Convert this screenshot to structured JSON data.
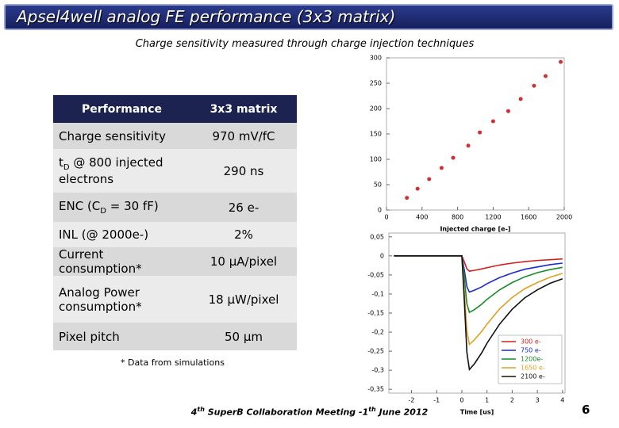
{
  "title": "Apsel4well analog FE performance (3x3 matrix)",
  "subtitle": "Charge sensitivity measured through charge injection techniques",
  "table": {
    "header": [
      "Performance",
      "3x3 matrix"
    ],
    "rows": [
      [
        "Charge sensitivity",
        "970 mV/fC"
      ],
      [
        {
          "text": "t",
          "sub": "D",
          "after": " @ 800 injected electrons"
        },
        "290 ns"
      ],
      [
        {
          "text": "ENC  (C",
          "sub": "D",
          "after": " = 30 fF)"
        },
        "26 e-"
      ],
      [
        "INL (@ 2000e-)",
        "2%"
      ],
      [
        "Current consumption*",
        "10 μA/pixel"
      ],
      [
        "Analog Power consumption*",
        "18 μW/pixel"
      ],
      [
        "Pixel pitch",
        "50 μm"
      ]
    ]
  },
  "footnote": "* Data from simulations",
  "footer": [
    "4",
    "th",
    " SuperB Collaboration Meeting -1",
    "th",
    " June 2012"
  ],
  "page_number": "6",
  "charts": [
    {
      "type": "scatter",
      "xlabel": "Injected charge [e-]",
      "color": "#d03030",
      "x": [
        230,
        350,
        480,
        620,
        750,
        920,
        1050,
        1200,
        1370,
        1510,
        1660,
        1790,
        1960
      ],
      "values": [
        24,
        42,
        61,
        83,
        103,
        127,
        153,
        175,
        195,
        219,
        245,
        264,
        292
      ],
      "xlim": [
        0,
        2000
      ],
      "xticks": [
        0,
        400,
        800,
        1200,
        1600,
        2000
      ],
      "ylim": [
        0,
        300
      ],
      "yticks": [
        0,
        50,
        100,
        150,
        200,
        250,
        300
      ]
    },
    {
      "type": "line",
      "xlabel": "Time [us]",
      "legend": "lower right",
      "x": [
        -2.7,
        -2,
        -1,
        0,
        0.1,
        0.2,
        0.3,
        0.5,
        0.8,
        1,
        1.5,
        2,
        2.5,
        3,
        3.5,
        4
      ],
      "series": [
        {
          "name": "300 e-",
          "color": "#d02020",
          "values": [
            0,
            0,
            0,
            0,
            -0.016,
            -0.034,
            -0.04,
            -0.038,
            -0.034,
            -0.031,
            -0.024,
            -0.019,
            -0.015,
            -0.012,
            -0.01,
            -0.008
          ]
        },
        {
          "name": "750 e-",
          "color": "#1a2ad0",
          "values": [
            0,
            0,
            0,
            0,
            -0.038,
            -0.081,
            -0.095,
            -0.09,
            -0.081,
            -0.073,
            -0.057,
            -0.045,
            -0.035,
            -0.029,
            -0.023,
            -0.019
          ]
        },
        {
          "name": "1200e-",
          "color": "#1a8a2a",
          "values": [
            0,
            0,
            0,
            0,
            -0.059,
            -0.126,
            -0.148,
            -0.141,
            -0.126,
            -0.114,
            -0.089,
            -0.07,
            -0.055,
            -0.044,
            -0.036,
            -0.03
          ]
        },
        {
          "name": "1650 e-",
          "color": "#e0a020",
          "values": [
            0,
            0,
            0,
            0,
            -0.093,
            -0.197,
            -0.232,
            -0.22,
            -0.197,
            -0.179,
            -0.139,
            -0.109,
            -0.086,
            -0.07,
            -0.056,
            -0.046
          ]
        },
        {
          "name": "2100 e-",
          "color": "#111111",
          "values": [
            0,
            0,
            0,
            0,
            -0.119,
            -0.253,
            -0.298,
            -0.283,
            -0.253,
            -0.229,
            -0.179,
            -0.14,
            -0.11,
            -0.089,
            -0.072,
            -0.06
          ]
        }
      ],
      "xlim": [
        -2.9,
        4.1
      ],
      "xticks": [
        -2,
        -1,
        0,
        1,
        2,
        3,
        4
      ],
      "ylim": [
        -0.36,
        0.06
      ],
      "yticks": [
        {
          "value": 0.05,
          "label": "0,05"
        },
        0,
        {
          "value": -0.05,
          "label": "-0,05"
        },
        {
          "value": -0.1,
          "label": "-0,1"
        },
        {
          "value": -0.15,
          "label": "-0,15"
        },
        {
          "value": -0.2,
          "label": "-0,2"
        },
        {
          "value": -0.25,
          "label": "-0,25"
        },
        {
          "value": -0.3,
          "label": "-0,3"
        },
        {
          "value": -0.35,
          "label": "-0,35"
        }
      ]
    }
  ]
}
